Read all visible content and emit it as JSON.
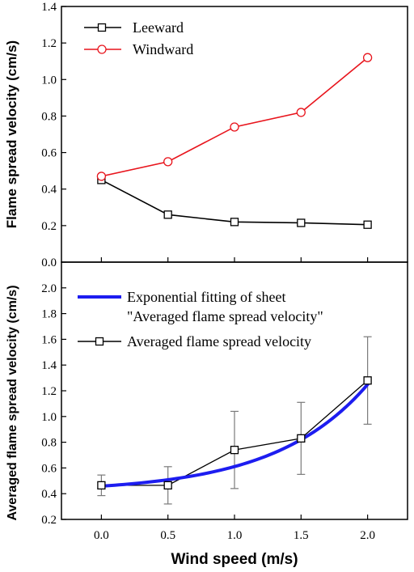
{
  "colors": {
    "leeward": "#000000",
    "windward": "#e8141c",
    "fit": "#1d1df0",
    "error_bar": "#7a7a7a"
  },
  "chart_data": [
    {
      "type": "line",
      "ylabel": "Flame spread velocity (cm/s)",
      "ylim": [
        0.0,
        1.4
      ],
      "yticks": [
        "0.0",
        "0.2",
        "0.4",
        "0.6",
        "0.8",
        "1.0",
        "1.2",
        "1.4"
      ],
      "x": [
        0.0,
        0.5,
        1.0,
        1.5,
        2.0
      ],
      "legend_position": "top-left",
      "series": [
        {
          "name": "Leeward",
          "marker": "square",
          "values": [
            0.45,
            0.26,
            0.22,
            0.215,
            0.205
          ]
        },
        {
          "name": "Windward",
          "marker": "circle",
          "values": [
            0.47,
            0.55,
            0.74,
            0.82,
            1.12
          ]
        }
      ]
    },
    {
      "type": "line",
      "ylabel": "Averaged flame spread velocity (cm/s)",
      "xlabel": "Wind speed (m/s)",
      "xlim": [
        -0.3,
        2.3
      ],
      "ylim": [
        0.2,
        2.2
      ],
      "xticks": [
        "0.0",
        "0.5",
        "1.0",
        "1.5",
        "2.0"
      ],
      "yticks": [
        "0.2",
        "0.4",
        "0.6",
        "0.8",
        "1.0",
        "1.2",
        "1.4",
        "1.6",
        "1.8",
        "2.0"
      ],
      "x": [
        0.0,
        0.5,
        1.0,
        1.5,
        2.0
      ],
      "legend_position": "top-left",
      "series": [
        {
          "name": "Exponential fitting of sheet \"Averaged  flame spread velocity\"",
          "type": "fit",
          "fit": {
            "a": 0.0476,
            "b": 1.434,
            "c": 0.411
          }
        },
        {
          "name": "Averaged flame spread velocity",
          "marker": "square",
          "values": [
            0.465,
            0.465,
            0.74,
            0.83,
            1.28
          ],
          "error": [
            0.08,
            0.145,
            0.3,
            0.28,
            0.34
          ]
        }
      ]
    }
  ]
}
